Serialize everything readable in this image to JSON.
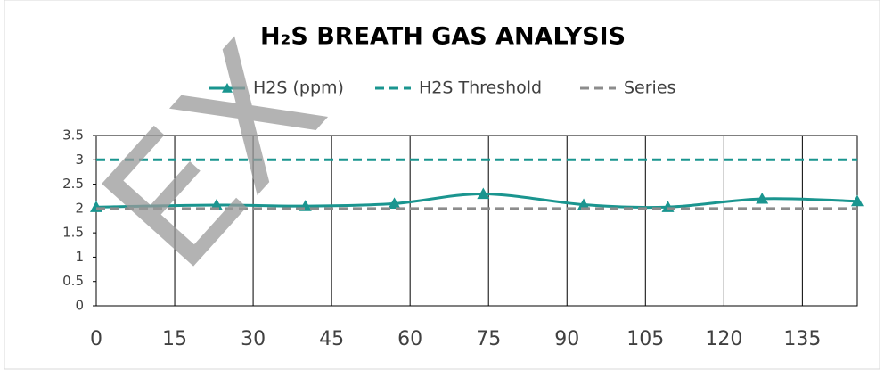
{
  "chart_data": {
    "type": "line",
    "title": "H₂S BREATH GAS ANALYSIS",
    "watermark": "EX",
    "series": [
      {
        "name": "H2S (ppm)",
        "color": "#1a958f",
        "style": "solid",
        "marker": "triangle",
        "smooth": true,
        "x": [
          0,
          23,
          40,
          57,
          74,
          93.2,
          109.3,
          127.3,
          145.5
        ],
        "values": [
          2.03,
          2.07,
          2.05,
          2.1,
          2.3,
          2.08,
          2.03,
          2.2,
          2.15
        ]
      },
      {
        "name": "H2S Threshold",
        "color": "#1a958f",
        "style": "dashed",
        "x": [
          0,
          145.5
        ],
        "values": [
          3,
          3
        ]
      },
      {
        "name": "Series",
        "color": "#8c8c8c",
        "style": "dashed",
        "x": [
          0,
          145.5
        ],
        "values": [
          2,
          2
        ]
      }
    ],
    "xlim": [
      0,
      145.5
    ],
    "xticks": [
      0,
      15,
      30,
      45,
      60,
      75,
      90,
      105,
      120,
      135
    ],
    "ylim": [
      0,
      3.5
    ],
    "yticks": [
      0,
      0.5,
      1,
      1.5,
      2,
      2.5,
      3,
      3.5
    ],
    "grid": "x",
    "legend": "top"
  }
}
